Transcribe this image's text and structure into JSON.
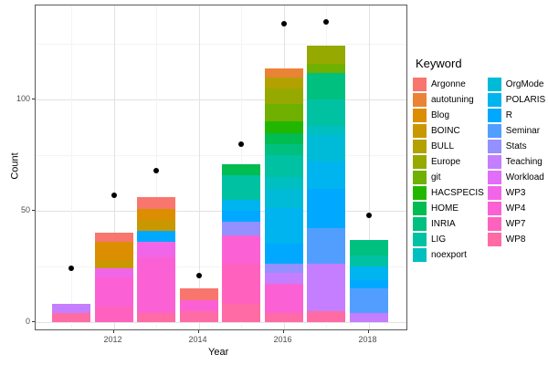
{
  "axes": {
    "x_label": "Year",
    "y_label": "Count",
    "x_ticks": [
      "2012",
      "2014",
      "2016",
      "2018"
    ],
    "y_ticks": [
      "0",
      "50",
      "100"
    ]
  },
  "legend": {
    "title": "Keyword",
    "col1_count": 12
  },
  "keywords": [
    {
      "label": "Argonne",
      "color": "#F8766D"
    },
    {
      "label": "autotuning",
      "color": "#EB8335"
    },
    {
      "label": "Blog",
      "color": "#DB8E00"
    },
    {
      "label": "BOINC",
      "color": "#C99800"
    },
    {
      "label": "BULL",
      "color": "#B2A100"
    },
    {
      "label": "Europe",
      "color": "#95A900"
    },
    {
      "label": "git",
      "color": "#6FB000"
    },
    {
      "label": "HACSPECIS",
      "color": "#21B700"
    },
    {
      "label": "HOME",
      "color": "#00BC51"
    },
    {
      "label": "INRIA",
      "color": "#00C07F"
    },
    {
      "label": "LIG",
      "color": "#00C1A2"
    },
    {
      "label": "noexport",
      "color": "#00BFC0"
    },
    {
      "label": "OrgMode",
      "color": "#00BBD8"
    },
    {
      "label": "POLARIS",
      "color": "#00B4EF"
    },
    {
      "label": "R",
      "color": "#00A9FF"
    },
    {
      "label": "Seminar",
      "color": "#529EFF"
    },
    {
      "label": "Stats",
      "color": "#9490FF"
    },
    {
      "label": "Teaching",
      "color": "#C47EFF"
    },
    {
      "label": "Workload",
      "color": "#E26DF8"
    },
    {
      "label": "WP3",
      "color": "#F166E8"
    },
    {
      "label": "WP4",
      "color": "#FB61D5"
    },
    {
      "label": "WP7",
      "color": "#FF62BE"
    },
    {
      "label": "WP8",
      "color": "#FF6BA4"
    }
  ],
  "chart_data": {
    "type": "bar",
    "stacked": true,
    "title": "",
    "xlabel": "Year",
    "ylabel": "Count",
    "x": [
      2011,
      2012,
      2013,
      2014,
      2015,
      2016,
      2017,
      2018
    ],
    "ylim": [
      0,
      142
    ],
    "y_major_gridlines": [
      0,
      50,
      100
    ],
    "y_minor_gridlines": [
      25,
      75,
      125
    ],
    "legend_position": "right",
    "bars": [
      {
        "year": 2011,
        "total": 8,
        "segments": [
          [
            "WP8",
            4
          ],
          [
            "Teaching",
            4
          ]
        ]
      },
      {
        "year": 2012,
        "total": 40,
        "segments": [
          [
            "WP7",
            7
          ],
          [
            "WP4",
            13
          ],
          [
            "WP3",
            4
          ],
          [
            "BOINC",
            4
          ],
          [
            "Blog",
            8
          ],
          [
            "Argonne",
            4
          ]
        ]
      },
      {
        "year": 2013,
        "total": 56,
        "segments": [
          [
            "WP8",
            4
          ],
          [
            "WP4",
            25
          ],
          [
            "WP3",
            7
          ],
          [
            "R",
            5
          ],
          [
            "BOINC",
            5
          ],
          [
            "Blog",
            5
          ],
          [
            "Argonne",
            5
          ]
        ]
      },
      {
        "year": 2014,
        "total": 15,
        "segments": [
          [
            "WP8",
            5
          ],
          [
            "WP4",
            5
          ],
          [
            "Argonne",
            5
          ]
        ]
      },
      {
        "year": 2015,
        "total": 71,
        "segments": [
          [
            "WP8",
            8
          ],
          [
            "WP7",
            18
          ],
          [
            "WP4",
            13
          ],
          [
            "Stats",
            6
          ],
          [
            "R",
            5
          ],
          [
            "POLARIS",
            5
          ],
          [
            "LIG",
            11
          ],
          [
            "HOME",
            5
          ]
        ]
      },
      {
        "year": 2016,
        "total": 114,
        "segments": [
          [
            "WP8",
            4
          ],
          [
            "WP4",
            13
          ],
          [
            "Teaching",
            5
          ],
          [
            "Stats",
            4
          ],
          [
            "R",
            9
          ],
          [
            "POLARIS",
            16
          ],
          [
            "OrgMode",
            9
          ],
          [
            "noexport",
            5
          ],
          [
            "LIG",
            10
          ],
          [
            "INRIA",
            5
          ],
          [
            "HOME",
            5
          ],
          [
            "HACSPECIS",
            5
          ],
          [
            "git",
            8
          ],
          [
            "Europe",
            7
          ],
          [
            "BULL",
            5
          ],
          [
            "autotuning",
            4
          ]
        ]
      },
      {
        "year": 2017,
        "total": 124,
        "segments": [
          [
            "WP8",
            5
          ],
          [
            "Teaching",
            21
          ],
          [
            "Seminar",
            16
          ],
          [
            "R",
            18
          ],
          [
            "POLARIS",
            12
          ],
          [
            "OrgMode",
            12
          ],
          [
            "noexport",
            4
          ],
          [
            "LIG",
            12
          ],
          [
            "INRIA",
            12
          ],
          [
            "git",
            4
          ],
          [
            "Europe",
            8
          ]
        ]
      },
      {
        "year": 2018,
        "total": 37,
        "segments": [
          [
            "Teaching",
            4
          ],
          [
            "Seminar",
            11
          ],
          [
            "R",
            4
          ],
          [
            "POLARIS",
            6
          ],
          [
            "LIG",
            5
          ],
          [
            "INRIA",
            7
          ]
        ]
      }
    ],
    "points": [
      {
        "year": 2011,
        "value": 24
      },
      {
        "year": 2012,
        "value": 57
      },
      {
        "year": 2013,
        "value": 68
      },
      {
        "year": 2014,
        "value": 21
      },
      {
        "year": 2015,
        "value": 80
      },
      {
        "year": 2016,
        "value": 134
      },
      {
        "year": 2017,
        "value": 135
      },
      {
        "year": 2018,
        "value": 48
      }
    ]
  }
}
